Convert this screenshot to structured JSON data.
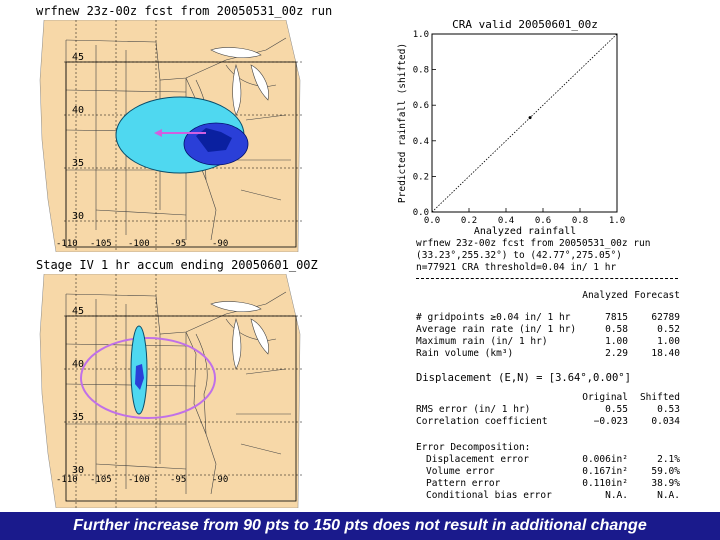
{
  "top_map": {
    "title": "wrfnew 23z-00z fcst from 20050531_00z run",
    "lat_labels": [
      "45",
      "40",
      "35",
      "30"
    ],
    "lon_labels": [
      "-110",
      "-105",
      "-100",
      "-95",
      "-90"
    ]
  },
  "bottom_map": {
    "title": "Stage IV 1 hr accum ending 20050601_00Z",
    "lat_labels": [
      "45",
      "40",
      "35",
      "30"
    ],
    "lon_labels": [
      "-110",
      "-105",
      "-100",
      "-95",
      "-90"
    ]
  },
  "chart_data": {
    "type": "scatter",
    "title": "CRA valid 20050601_00z",
    "xlabel": "Analyzed rainfall",
    "ylabel": "Predicted rainfall (shifted)",
    "xlim": [
      0.0,
      1.0
    ],
    "ylim": [
      0.0,
      1.0
    ],
    "x_ticks": [
      "0.0",
      "0.2",
      "0.4",
      "0.6",
      "0.8",
      "1.0"
    ],
    "y_ticks": [
      "0.0",
      "0.2",
      "0.4",
      "0.6",
      "0.8",
      "1.0"
    ],
    "reference_line": "y = x",
    "points": [
      {
        "x": 0.53,
        "y": 0.53
      }
    ]
  },
  "stats": {
    "header_lines": [
      "wrfnew 23z-00z fcst from 20050531_00z run",
      "(33.23°,255.32°) to (42.77°,275.05°)",
      "n=77921   CRA threshold=0.04 in/ 1 hr"
    ],
    "col_analyzed": "Analyzed",
    "col_forecast": "Forecast",
    "rows1": [
      {
        "label": "# gridpoints ≥0.04 in/ 1 hr",
        "analyzed": "7815",
        "forecast": "62789"
      },
      {
        "label": "Average rain rate (in/ 1 hr)",
        "analyzed": "0.58",
        "forecast": "0.52"
      },
      {
        "label": "Maximum rain (in/ 1 hr)",
        "analyzed": "1.00",
        "forecast": "1.00"
      },
      {
        "label": "Rain volume (km³)",
        "analyzed": "2.29",
        "forecast": "18.40"
      }
    ],
    "displacement": "Displacement (E,N) = [3.64°,0.00°]",
    "col_original": "Original",
    "col_shifted": "Shifted",
    "rows2": [
      {
        "label": "RMS error (in/ 1 hr)",
        "original": "0.55",
        "shifted": "0.53"
      },
      {
        "label": "Correlation coefficient",
        "original": "−0.023",
        "shifted": "0.034"
      }
    ],
    "error_title": "Error Decomposition:",
    "rows3": [
      {
        "label": "Displacement error",
        "value": "0.006in²",
        "pct": "2.1%"
      },
      {
        "label": "Volume error",
        "value": "0.167in²",
        "pct": "59.0%"
      },
      {
        "label": "Pattern error",
        "value": "0.110in²",
        "pct": "38.9%"
      },
      {
        "label": "Conditional bias error",
        "value": "N.A.",
        "pct": "N.A."
      }
    ]
  },
  "caption": "Further increase from 90 pts to 150 pts does not result in additional change",
  "colors": {
    "land": "#f7d8a8",
    "ellipse_fill": "#4fd8f0",
    "rain_core": "#2a3fd8",
    "analysis_ellipse": "#c070e8",
    "arrow": "#d060e0",
    "caption_bg": "#1a1a8c"
  }
}
